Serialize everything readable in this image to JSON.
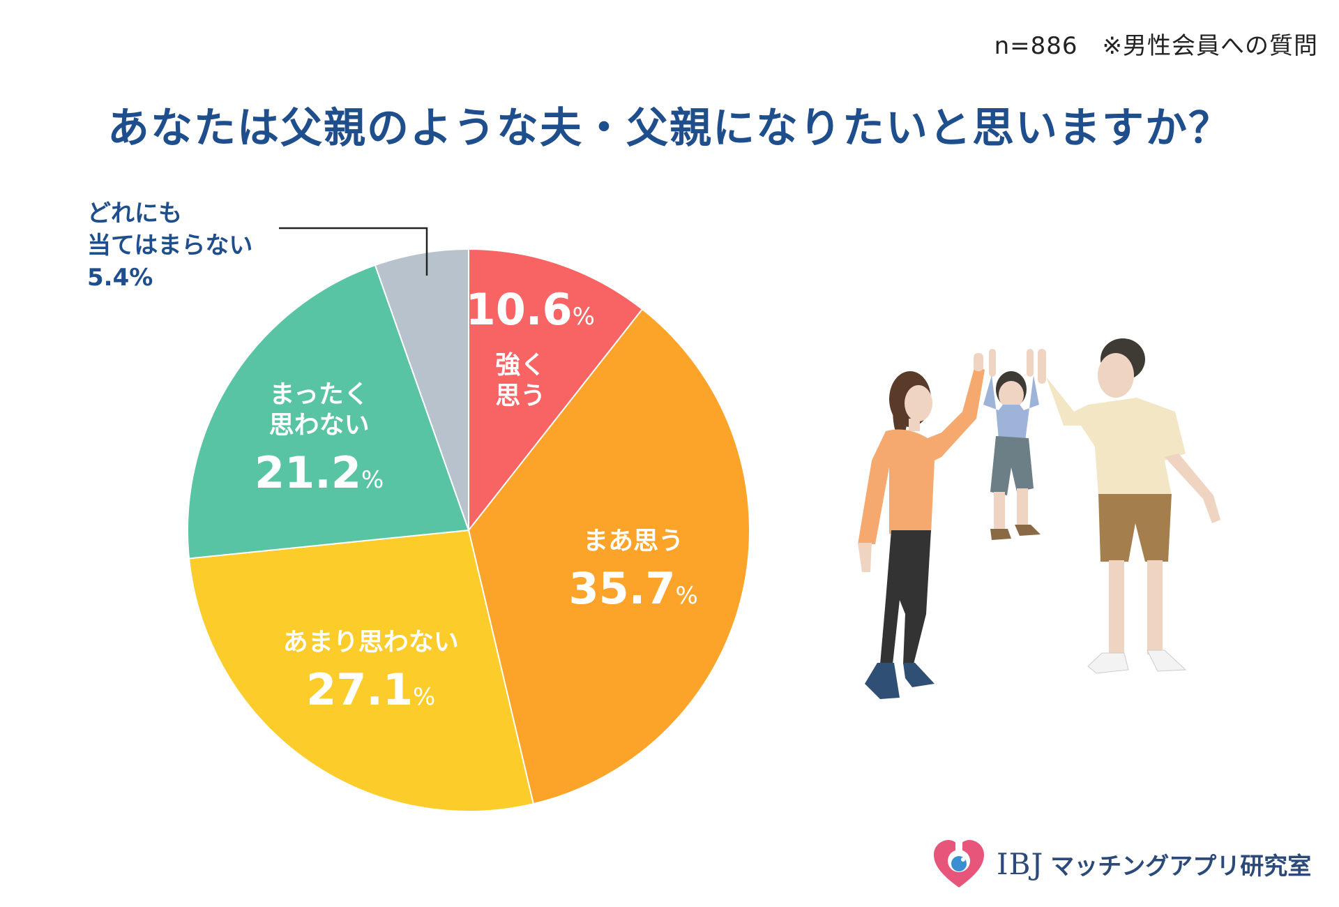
{
  "note": "n=886　※男性会員への質問",
  "title": "あなたは父親のような夫・父親になりたいと思いますか？",
  "chart_data": {
    "type": "pie",
    "title": "あなたは父親のような夫・父親になりたいと思いますか？",
    "slices": [
      {
        "label_lines": [
          "強く",
          "思う"
        ],
        "value": 10.6,
        "value_text": "10.6",
        "unit": "%",
        "color": "#f86464"
      },
      {
        "label_lines": [
          "まあ思う"
        ],
        "value": 35.7,
        "value_text": "35.7",
        "unit": "%",
        "color": "#fba429"
      },
      {
        "label_lines": [
          "あまり思わない"
        ],
        "value": 27.1,
        "value_text": "27.1",
        "unit": "%",
        "color": "#fbcc2a"
      },
      {
        "label_lines": [
          "まったく",
          "思わない"
        ],
        "value": 21.2,
        "value_text": "21.2",
        "unit": "%",
        "color": "#59c4a3"
      },
      {
        "label_lines": [
          "どれにも",
          "当てはまらない"
        ],
        "value": 5.4,
        "value_text": "5.4",
        "unit": "%",
        "color": "#b8c2cd"
      }
    ],
    "start": "top",
    "direction": "clockwise"
  },
  "outside_label": {
    "line1": "どれにも",
    "line2": "当てはまらない",
    "value": "5.4%"
  },
  "logo": {
    "brand": "IBJ",
    "text": "マッチングアプリ研究室",
    "icon": "heart-flask-icon"
  },
  "illustration": {
    "icon": "family-swinging-child-icon"
  }
}
